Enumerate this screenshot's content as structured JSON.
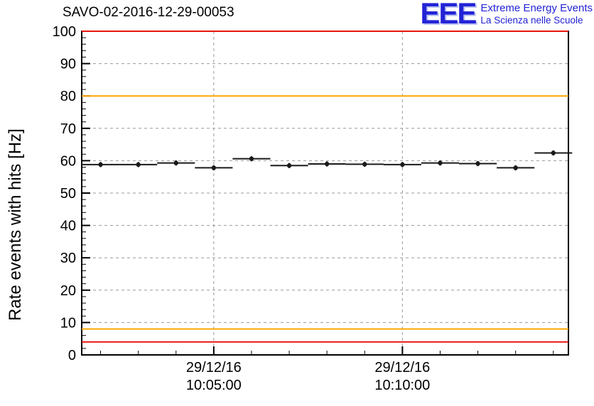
{
  "header": {
    "title": "SAVO-02-2016-12-29-00053",
    "logo": {
      "text": "EEE",
      "line1": "Extreme Energy Events",
      "line2": "La Scienza nelle Scuole",
      "color": "#2323d6"
    }
  },
  "chart_data": {
    "type": "scatter",
    "title": "SAVO-02-2016-12-29-00053",
    "ylabel": "Rate events with hits [Hz]",
    "ylim": [
      0,
      100
    ],
    "xlim_minutes": [
      1.5,
      14.4
    ],
    "y_major_ticks": [
      0,
      10,
      20,
      30,
      40,
      50,
      60,
      70,
      80,
      90,
      100
    ],
    "y_minor_step": 2,
    "x_ticks": [
      {
        "t": 5,
        "line1": "29/12/16",
        "line2": "10:05:00"
      },
      {
        "t": 10,
        "line1": "29/12/16",
        "line2": "10:10:00"
      }
    ],
    "x_minor_step": 1,
    "grid": {
      "show": true,
      "color": "#999999",
      "dash": "4,4"
    },
    "ref_lines": [
      {
        "y": 100,
        "color": "#e8160c",
        "width": 2
      },
      {
        "y": 80,
        "color": "#ffa500",
        "width": 2
      },
      {
        "y": 8,
        "color": "#ffa500",
        "width": 2
      },
      {
        "y": 4,
        "color": "#e8160c",
        "width": 2
      }
    ],
    "marker": {
      "color": "#1a1a1a",
      "radius": 3.2
    },
    "xerr_minutes": 0.5,
    "yerr_hz": 0.8,
    "points": [
      {
        "t": 2,
        "y": 58.8
      },
      {
        "t": 3,
        "y": 58.8
      },
      {
        "t": 4,
        "y": 59.3
      },
      {
        "t": 5,
        "y": 57.8
      },
      {
        "t": 6,
        "y": 60.6
      },
      {
        "t": 7,
        "y": 58.5
      },
      {
        "t": 8,
        "y": 59.0
      },
      {
        "t": 9,
        "y": 58.9
      },
      {
        "t": 10,
        "y": 58.8
      },
      {
        "t": 11,
        "y": 59.3
      },
      {
        "t": 12,
        "y": 59.1
      },
      {
        "t": 13,
        "y": 57.8
      },
      {
        "t": 14,
        "y": 62.4
      }
    ]
  }
}
